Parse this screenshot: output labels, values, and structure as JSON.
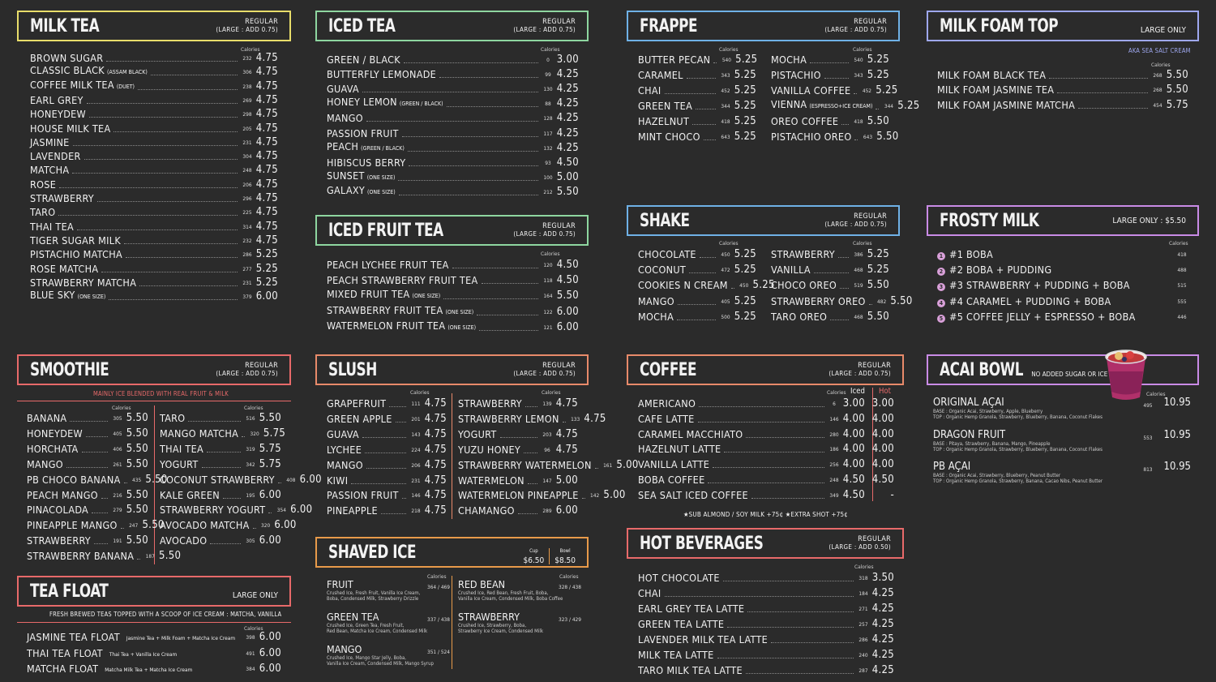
{
  "milk_tea": {
    "title": "MILK TEA",
    "r1": "REGULAR",
    "r2": "(LARGE : ADD 0.75)",
    "cal": "Calories",
    "items": [
      {
        "n": "BROWN SUGAR",
        "s": "",
        "c": "232",
        "p": "4.75"
      },
      {
        "n": "CLASSIC BLACK",
        "s": "(ASSAM BLACK)",
        "c": "306",
        "p": "4.75"
      },
      {
        "n": "COFFEE MILK TEA",
        "s": "(DUET)",
        "c": "238",
        "p": "4.75"
      },
      {
        "n": "EARL GREY",
        "s": "",
        "c": "269",
        "p": "4.75"
      },
      {
        "n": "HONEYDEW",
        "s": "",
        "c": "298",
        "p": "4.75"
      },
      {
        "n": "HOUSE MILK TEA",
        "s": "",
        "c": "205",
        "p": "4.75"
      },
      {
        "n": "JASMINE",
        "s": "",
        "c": "231",
        "p": "4.75"
      },
      {
        "n": "LAVENDER",
        "s": "",
        "c": "304",
        "p": "4.75"
      },
      {
        "n": "MATCHA",
        "s": "",
        "c": "248",
        "p": "4.75"
      },
      {
        "n": "ROSE",
        "s": "",
        "c": "206",
        "p": "4.75"
      },
      {
        "n": "STRAWBERRY",
        "s": "",
        "c": "296",
        "p": "4.75"
      },
      {
        "n": "TARO",
        "s": "",
        "c": "225",
        "p": "4.75"
      },
      {
        "n": "THAI TEA",
        "s": "",
        "c": "314",
        "p": "4.75"
      },
      {
        "n": "TIGER SUGAR MILK",
        "s": "",
        "c": "232",
        "p": "4.75"
      },
      {
        "n": "PISTACHIO MATCHA",
        "s": "",
        "c": "286",
        "p": "5.25"
      },
      {
        "n": "ROSE MATCHA",
        "s": "",
        "c": "277",
        "p": "5.25"
      },
      {
        "n": "STRAWBERRY MATCHA",
        "s": "",
        "c": "231",
        "p": "5.25"
      },
      {
        "n": "BLUE SKY",
        "s": "(ONE SIZE)",
        "c": "379",
        "p": "6.00"
      }
    ]
  },
  "iced_tea": {
    "title": "ICED TEA",
    "r1": "REGULAR",
    "r2": "(LARGE : ADD 0.75)",
    "cal": "Calories",
    "items": [
      {
        "n": "GREEN / BLACK",
        "s": "",
        "c": "0",
        "p": "3.00"
      },
      {
        "n": "BUTTERFLY LEMONADE",
        "s": "",
        "c": "99",
        "p": "4.25"
      },
      {
        "n": "GUAVA",
        "s": "",
        "c": "130",
        "p": "4.25"
      },
      {
        "n": "HONEY LEMON",
        "s": "(GREEN / BLACK)",
        "c": "88",
        "p": "4.25"
      },
      {
        "n": "MANGO",
        "s": "",
        "c": "128",
        "p": "4.25"
      },
      {
        "n": "PASSION FRUIT",
        "s": "",
        "c": "117",
        "p": "4.25"
      },
      {
        "n": "PEACH",
        "s": "(GREEN / BLACK)",
        "c": "132",
        "p": "4.25"
      },
      {
        "n": "HIBISCUS BERRY",
        "s": "",
        "c": "93",
        "p": "4.50"
      },
      {
        "n": "SUNSET",
        "s": "(ONE SIZE)",
        "c": "100",
        "p": "5.00"
      },
      {
        "n": "GALAXY",
        "s": "(ONE SIZE)",
        "c": "212",
        "p": "5.50"
      }
    ]
  },
  "iced_fruit_tea": {
    "title": "ICED FRUIT TEA",
    "r1": "REGULAR",
    "r2": "(LARGE : ADD 0.75)",
    "cal": "Calories",
    "items": [
      {
        "n": "PEACH LYCHEE FRUIT TEA",
        "s": "",
        "c": "120",
        "p": "4.50"
      },
      {
        "n": "PEACH STRAWBERRY FRUIT TEA",
        "s": "",
        "c": "118",
        "p": "4.50"
      },
      {
        "n": "MIXED FRUIT TEA",
        "s": "(ONE SIZE)",
        "c": "164",
        "p": "5.50"
      },
      {
        "n": "STRAWBERRY FRUIT TEA",
        "s": "(ONE SIZE)",
        "c": "122",
        "p": "6.00"
      },
      {
        "n": "WATERMELON FRUIT TEA",
        "s": "(ONE SIZE)",
        "c": "121",
        "p": "6.00"
      }
    ]
  },
  "frappe": {
    "title": "FRAPPE",
    "r1": "REGULAR",
    "r2": "(LARGE : ADD 0.75)",
    "cal": "Calories",
    "left": [
      {
        "n": "BUTTER PECAN",
        "c": "540",
        "p": "5.25"
      },
      {
        "n": "CARAMEL",
        "c": "343",
        "p": "5.25"
      },
      {
        "n": "CHAI",
        "c": "452",
        "p": "5.25"
      },
      {
        "n": "GREEN TEA",
        "c": "344",
        "p": "5.25"
      },
      {
        "n": "HAZELNUT",
        "c": "418",
        "p": "5.25"
      },
      {
        "n": "MINT CHOCO",
        "c": "643",
        "p": "5.25"
      }
    ],
    "right": [
      {
        "n": "MOCHA",
        "s": "",
        "c": "540",
        "p": "5.25"
      },
      {
        "n": "PISTACHIO",
        "s": "",
        "c": "343",
        "p": "5.25"
      },
      {
        "n": "VANILLA COFFEE",
        "s": "",
        "c": "452",
        "p": "5.25"
      },
      {
        "n": "VIENNA",
        "s": "(ESPRESSO+ICE CREAM)",
        "c": "344",
        "p": "5.25"
      },
      {
        "n": "OREO COFFEE",
        "s": "",
        "c": "418",
        "p": "5.50"
      },
      {
        "n": "PISTACHIO OREO",
        "s": "",
        "c": "643",
        "p": "5.50"
      }
    ]
  },
  "milk_foam": {
    "title": "MILK FOAM TOP",
    "only": "LARGE ONLY",
    "aka": "AKA SEA SALT CREAM",
    "cal": "Calories",
    "items": [
      {
        "n": "MILK FOAM BLACK TEA",
        "c": "268",
        "p": "5.50"
      },
      {
        "n": "MILK FOAM JASMINE TEA",
        "c": "268",
        "p": "5.50"
      },
      {
        "n": "MILK FOAM JASMINE MATCHA",
        "c": "454",
        "p": "5.75"
      }
    ]
  },
  "shake": {
    "title": "SHAKE",
    "r1": "REGULAR",
    "r2": "(LARGE : ADD 0.75)",
    "cal": "Calories",
    "left": [
      {
        "n": "CHOCOLATE",
        "c": "450",
        "p": "5.25"
      },
      {
        "n": "COCONUT",
        "c": "472",
        "p": "5.25"
      },
      {
        "n": "COOKIES N CREAM",
        "c": "450",
        "p": "5.25"
      },
      {
        "n": "MANGO",
        "c": "405",
        "p": "5.25"
      },
      {
        "n": "MOCHA",
        "c": "500",
        "p": "5.25"
      }
    ],
    "right": [
      {
        "n": "STRAWBERRY",
        "c": "386",
        "p": "5.25"
      },
      {
        "n": "VANILLA",
        "c": "468",
        "p": "5.25"
      },
      {
        "n": "CHOCO OREO",
        "c": "519",
        "p": "5.50"
      },
      {
        "n": "STRAWBERRY OREO",
        "c": "482",
        "p": "5.50"
      },
      {
        "n": "TARO OREO",
        "c": "468",
        "p": "5.50"
      }
    ]
  },
  "frosty": {
    "title": "FROSTY MILK",
    "only": "LARGE ONLY : $5.50",
    "cal": "Calories",
    "items": [
      {
        "k": "1",
        "n": "#1 BOBA",
        "c": "418"
      },
      {
        "k": "2",
        "n": "#2 BOBA + PUDDING",
        "c": "488"
      },
      {
        "k": "3",
        "n": "#3 STRAWBERRY + PUDDING + BOBA",
        "c": "515"
      },
      {
        "k": "4",
        "n": "#4 CARAMEL + PUDDING + BOBA",
        "c": "555"
      },
      {
        "k": "5",
        "n": "#5 COFFEE JELLY + ESPRESSO + BOBA",
        "c": "446"
      }
    ]
  },
  "smoothie": {
    "title": "SMOOTHIE",
    "r1": "REGULAR",
    "r2": "(LARGE : ADD 0.75)",
    "note": "MAINLY ICE BLENDED WITH REAL FRUIT & MILK",
    "cal": "Calories",
    "left": [
      {
        "n": "BANANA",
        "c": "305",
        "p": "5.50"
      },
      {
        "n": "HONEYDEW",
        "c": "405",
        "p": "5.50"
      },
      {
        "n": "HORCHATA",
        "c": "406",
        "p": "5.50"
      },
      {
        "n": "MANGO",
        "c": "261",
        "p": "5.50"
      },
      {
        "n": "PB CHOCO BANANA",
        "c": "435",
        "p": "5.50"
      },
      {
        "n": "PEACH MANGO",
        "c": "216",
        "p": "5.50"
      },
      {
        "n": "PINACOLADA",
        "c": "279",
        "p": "5.50"
      },
      {
        "n": "PINEAPPLE MANGO",
        "c": "247",
        "p": "5.50"
      },
      {
        "n": "STRAWBERRY",
        "c": "191",
        "p": "5.50"
      },
      {
        "n": "STRAWBERRY BANANA",
        "c": "187",
        "p": "5.50"
      }
    ],
    "right": [
      {
        "n": "TARO",
        "c": "516",
        "p": "5.50"
      },
      {
        "n": "MANGO MATCHA",
        "c": "320",
        "p": "5.75"
      },
      {
        "n": "THAI TEA",
        "c": "319",
        "p": "5.75"
      },
      {
        "n": "YOGURT",
        "c": "342",
        "p": "5.75"
      },
      {
        "n": "COCONUT STRAWBERRY",
        "c": "408",
        "p": "6.00"
      },
      {
        "n": "KALE GREEN",
        "c": "195",
        "p": "6.00"
      },
      {
        "n": "STRAWBERRY YOGURT",
        "c": "354",
        "p": "6.00"
      },
      {
        "n": "AVOCADO MATCHA",
        "c": "320",
        "p": "6.00"
      },
      {
        "n": "AVOCADO",
        "c": "305",
        "p": "6.00"
      }
    ]
  },
  "slush": {
    "title": "SLUSH",
    "r1": "REGULAR",
    "r2": "(LARGE : ADD 0.75)",
    "cal": "Calories",
    "left": [
      {
        "n": "GRAPEFRUIT",
        "c": "111",
        "p": "4.75"
      },
      {
        "n": "GREEN APPLE",
        "c": "201",
        "p": "4.75"
      },
      {
        "n": "GUAVA",
        "c": "143",
        "p": "4.75"
      },
      {
        "n": "LYCHEE",
        "c": "224",
        "p": "4.75"
      },
      {
        "n": "MANGO",
        "c": "206",
        "p": "4.75"
      },
      {
        "n": "KIWI",
        "c": "231",
        "p": "4.75"
      },
      {
        "n": "PASSION FRUIT",
        "c": "146",
        "p": "4.75"
      },
      {
        "n": "PINEAPPLE",
        "c": "218",
        "p": "4.75"
      }
    ],
    "right": [
      {
        "n": "STRAWBERRY",
        "c": "139",
        "p": "4.75"
      },
      {
        "n": "STRAWBERRY LEMON",
        "c": "133",
        "p": "4.75"
      },
      {
        "n": "YOGURT",
        "c": "203",
        "p": "4.75"
      },
      {
        "n": "YUZU HONEY",
        "c": "96",
        "p": "4.75"
      },
      {
        "n": "STRAWBERRY WATERMELON",
        "c": "161",
        "p": "5.00"
      },
      {
        "n": "WATERMELON",
        "c": "147",
        "p": "5.00"
      },
      {
        "n": "WATERMELON PINEAPPLE",
        "c": "142",
        "p": "5.00"
      },
      {
        "n": "CHAMANGO",
        "c": "289",
        "p": "6.00"
      }
    ]
  },
  "coffee": {
    "title": "COFFEE",
    "r1": "REGULAR",
    "r2": "(LARGE : ADD 0.75)",
    "cal": "Calories",
    "iced": "Iced",
    "hot": "Hot",
    "items": [
      {
        "n": "AMERICANO",
        "c": "6",
        "i": "3.00",
        "h": "3.00"
      },
      {
        "n": "CAFE LATTE",
        "c": "146",
        "i": "4.00",
        "h": "4.00"
      },
      {
        "n": "CARAMEL MACCHIATO",
        "c": "280",
        "i": "4.00",
        "h": "4.00"
      },
      {
        "n": "HAZELNUT LATTE",
        "c": "186",
        "i": "4.00",
        "h": "4.00"
      },
      {
        "n": "VANILLA LATTE",
        "c": "256",
        "i": "4.00",
        "h": "4.00"
      },
      {
        "n": "BOBA COFFEE",
        "c": "248",
        "i": "4.50",
        "h": "4.50"
      },
      {
        "n": "SEA SALT ICED COFFEE",
        "c": "349",
        "i": "4.50",
        "h": "-"
      }
    ],
    "note": "★SUB ALMOND / SOY MILK +75¢     ★EXTRA SHOT +75¢"
  },
  "hot_bev": {
    "title": "HOT BEVERAGES",
    "r1": "REGULAR",
    "r2": "(LARGE : ADD 0.50)",
    "cal": "Calories",
    "items": [
      {
        "n": "HOT CHOCOLATE",
        "c": "318",
        "p": "3.50"
      },
      {
        "n": "CHAI",
        "c": "184",
        "p": "4.25"
      },
      {
        "n": "EARL GREY TEA LATTE",
        "c": "271",
        "p": "4.25"
      },
      {
        "n": "GREEN TEA LATTE",
        "c": "257",
        "p": "4.25"
      },
      {
        "n": "LAVENDER MILK TEA LATTE",
        "c": "286",
        "p": "4.25"
      },
      {
        "n": "MILK TEA LATTE",
        "c": "240",
        "p": "4.25"
      },
      {
        "n": "TARO MILK TEA LATTE",
        "c": "287",
        "p": "4.25"
      }
    ]
  },
  "acai": {
    "title": "ACAI BOWL",
    "tag": "NO ADDED SUGAR OR ICE",
    "cal": "Calories",
    "items": [
      {
        "n": "ORIGINAL AÇAI",
        "c": "495",
        "p": "10.95",
        "b": "BASE :  Organic Acai, Strawberry, Apple, Blueberry",
        "t": "TOP :  Organic Hemp Granola, Strawberry, Blueberry, Banana, Coconut Flakes"
      },
      {
        "n": "DRAGON FRUIT",
        "c": "553",
        "p": "10.95",
        "b": "BASE :  Pitaya, Strawberry, Banana, Mango, Pineapple",
        "t": "TOP :  Organic Hemp Granola, Strawberry, Blueberry, Banana, Coconut Flakes"
      },
      {
        "n": "PB AÇAI",
        "c": "813",
        "p": "10.95",
        "b": "BASE :  Organic Acai, Strawberry, Blueberry, Peanut Butter",
        "t": "TOP :  Organic Hemp Granola, Strawberry, Banana, Cacao Nibs, Peanut Butter"
      }
    ]
  },
  "tea_float": {
    "title": "TEA FLOAT",
    "only": "LARGE ONLY",
    "note": "FRESH BREWED TEAS TOPPED WITH A SCOOP OF ICE CREAM : MATCHA, VANILLA",
    "cal": "Calories",
    "items": [
      {
        "n": "JASMINE TEA FLOAT",
        "d": "Jasmine Tea + Milk Foam + Matcha Ice Cream",
        "c": "398",
        "p": "6.00"
      },
      {
        "n": "THAI TEA FLOAT",
        "d": "Thai Tea + Vanilla Ice Cream",
        "c": "491",
        "p": "6.00"
      },
      {
        "n": "MATCHA FLOAT",
        "d": "Matcha Milk Tea + Matcha Ice Cream",
        "c": "384",
        "p": "6.00"
      }
    ]
  },
  "shaved_ice": {
    "title": "SHAVED ICE",
    "cup_l": "Cup",
    "cup_p": "$6.50",
    "bowl_l": "Bowl",
    "bowl_p": "$8.50",
    "cal": "Calories",
    "left": [
      {
        "n": "FRUIT",
        "c": "364 / 469",
        "d1": "Crushed Ice, Fresh Fruit, Vanilla Ice Cream,",
        "d2": "Boba, Condensed Milk, Strawberry Drizzle"
      },
      {
        "n": "GREEN TEA",
        "c": "337 / 438",
        "d1": "Crushed Ice, Green Tea, Fresh Fruit,",
        "d2": "Red Bean, Matcha Ice Cream, Condensed Milk"
      },
      {
        "n": "MANGO",
        "c": "351 / 524",
        "d1": "Crushed Ice, Mango Star Jelly, Boba,",
        "d2": "Vanilla Ice Cream, Condensed Milk, Mango Syrup"
      }
    ],
    "right": [
      {
        "n": "RED BEAN",
        "c": "328 / 438",
        "d1": "Crushed Ice, Red Bean, Fresh Fruit, Boba,",
        "d2": "Vanilla Ice Cream, Condensed Milk, Boba Coffee"
      },
      {
        "n": "STRAWBERRY",
        "c": "323 / 429",
        "d1": "Crushed Ice, Strawberry, Boba,",
        "d2": "Strawberry Ice Cream, Condensed Milk"
      }
    ]
  },
  "colors": {
    "yellow": "#e8dd6a",
    "green": "#8ed6a0",
    "blue": "#6fb1e6",
    "violet": "#9fa8f0",
    "pink": "#e86a6a",
    "salmon": "#e88a6a",
    "purple": "#c98be6",
    "orange": "#e89a4a"
  }
}
